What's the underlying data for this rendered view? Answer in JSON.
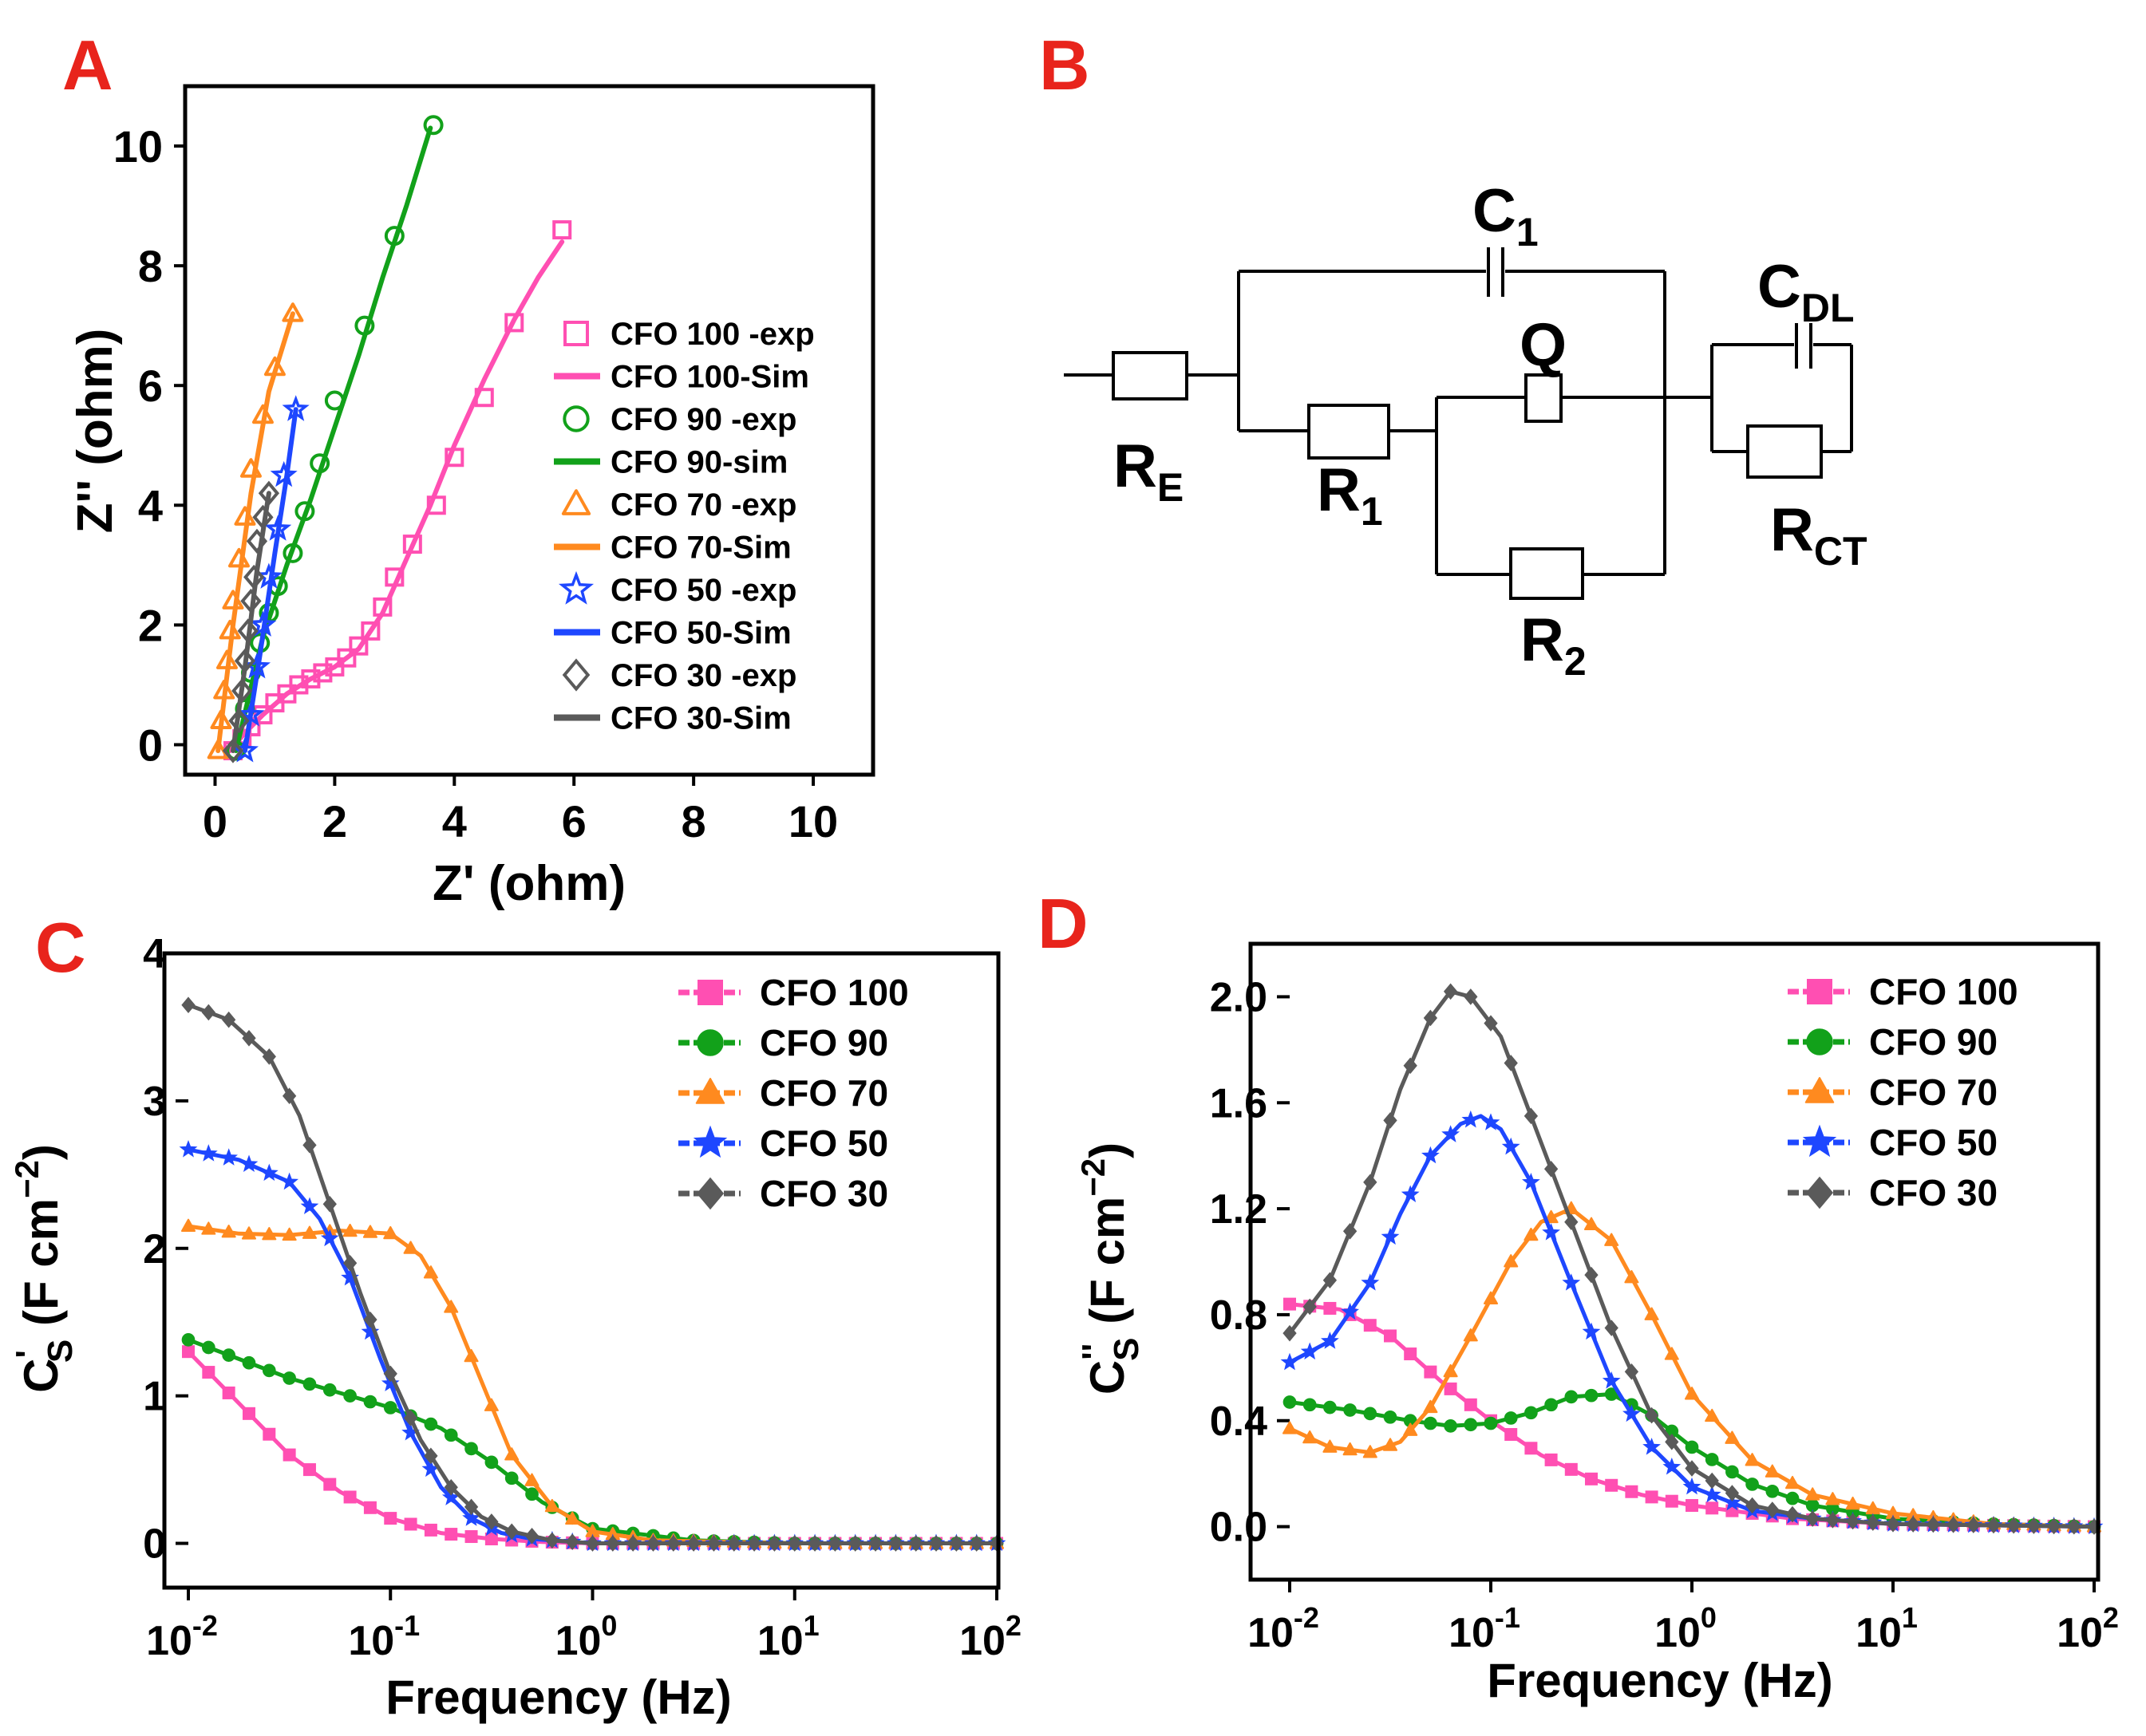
{
  "panel_labels": {
    "a": "A",
    "b": "B",
    "c": "C",
    "d": "D"
  },
  "colors": {
    "pink": "#ff4fb2",
    "green": "#12a11a",
    "orange": "#ff8a1f",
    "blue": "#1e47ff",
    "gray": "#5a5a5a",
    "label_red": "#e8241c"
  },
  "circuit": {
    "labels": {
      "re_main": "R",
      "re_sub": "E",
      "r1_main": "R",
      "r1_sub": "1",
      "r2_main": "R",
      "r2_sub": "2",
      "c1_main": "C",
      "c1_sub": "1",
      "cdl_main": "C",
      "cdl_sub": "DL",
      "rct_main": "R",
      "rct_sub": "CT",
      "q": "Q"
    }
  },
  "chart_data": [
    {
      "panel": "A",
      "type": "scatter",
      "xlabel": "Z' (ohm)",
      "ylabel": "Z'' (ohm)",
      "xlim": [
        -0.5,
        11
      ],
      "ylim": [
        -0.5,
        11
      ],
      "xticks": [
        "0",
        "2",
        "4",
        "6",
        "8",
        "10"
      ],
      "yticks": [
        "0",
        "2",
        "4",
        "6",
        "8",
        "10"
      ],
      "xtick_values": [
        0,
        2,
        4,
        6,
        8,
        10
      ],
      "ytick_values": [
        0,
        2,
        4,
        6,
        8,
        10
      ],
      "legend": [
        "CFO 100 -exp",
        "CFO 100-Sim",
        "CFO 90 -exp",
        "CFO 90-sim",
        "CFO 70 -exp",
        "CFO 70-Sim",
        "CFO 50 -exp",
        "CFO 50-Sim",
        "CFO 30 -exp",
        "CFO 30-Sim"
      ],
      "series": [
        {
          "name": "CFO 100",
          "color": "pink",
          "marker": "square",
          "exp": [
            [
              0.3,
              -0.1
            ],
            [
              0.45,
              0.1
            ],
            [
              0.6,
              0.3
            ],
            [
              0.8,
              0.5
            ],
            [
              1.0,
              0.7
            ],
            [
              1.2,
              0.85
            ],
            [
              1.4,
              1.0
            ],
            [
              1.6,
              1.1
            ],
            [
              1.8,
              1.2
            ],
            [
              2.0,
              1.3
            ],
            [
              2.2,
              1.45
            ],
            [
              2.4,
              1.65
            ],
            [
              2.6,
              1.9
            ],
            [
              2.8,
              2.3
            ],
            [
              3.0,
              2.8
            ],
            [
              3.3,
              3.35
            ],
            [
              3.7,
              4.0
            ],
            [
              4.0,
              4.8
            ],
            [
              4.5,
              5.8
            ],
            [
              5.0,
              7.05
            ],
            [
              5.8,
              8.6
            ]
          ],
          "sim": [
            [
              0.25,
              -0.1
            ],
            [
              0.5,
              0.2
            ],
            [
              0.8,
              0.5
            ],
            [
              1.2,
              0.85
            ],
            [
              1.6,
              1.1
            ],
            [
              2.0,
              1.3
            ],
            [
              2.4,
              1.6
            ],
            [
              2.8,
              2.2
            ],
            [
              3.2,
              3.1
            ],
            [
              3.6,
              4.0
            ],
            [
              4.0,
              5.0
            ],
            [
              4.5,
              6.1
            ],
            [
              5.0,
              7.1
            ],
            [
              5.4,
              7.8
            ],
            [
              5.8,
              8.4
            ]
          ]
        },
        {
          "name": "CFO 90",
          "color": "green",
          "marker": "circle",
          "exp": [
            [
              0.35,
              -0.1
            ],
            [
              0.5,
              0.6
            ],
            [
              0.6,
              1.2
            ],
            [
              0.75,
              1.7
            ],
            [
              0.9,
              2.2
            ],
            [
              1.05,
              2.65
            ],
            [
              1.3,
              3.2
            ],
            [
              1.5,
              3.9
            ],
            [
              1.75,
              4.7
            ],
            [
              2.0,
              5.75
            ],
            [
              2.5,
              7.0
            ],
            [
              3.0,
              8.5
            ],
            [
              3.65,
              10.35
            ]
          ],
          "sim": [
            [
              0.35,
              -0.1
            ],
            [
              0.8,
              1.8
            ],
            [
              1.2,
              3.0
            ],
            [
              1.6,
              4.1
            ],
            [
              2.0,
              5.3
            ],
            [
              2.4,
              6.5
            ],
            [
              2.8,
              7.8
            ],
            [
              3.2,
              9.0
            ],
            [
              3.6,
              10.3
            ]
          ]
        },
        {
          "name": "CFO 70",
          "color": "orange",
          "marker": "triangle",
          "exp": [
            [
              0.05,
              -0.1
            ],
            [
              0.1,
              0.4
            ],
            [
              0.15,
              0.9
            ],
            [
              0.2,
              1.4
            ],
            [
              0.25,
              1.9
            ],
            [
              0.3,
              2.4
            ],
            [
              0.4,
              3.1
            ],
            [
              0.5,
              3.8
            ],
            [
              0.6,
              4.6
            ],
            [
              0.8,
              5.5
            ],
            [
              1.0,
              6.3
            ],
            [
              1.3,
              7.2
            ]
          ],
          "sim": [
            [
              0.05,
              -0.1
            ],
            [
              0.3,
              2.0
            ],
            [
              0.6,
              4.2
            ],
            [
              0.9,
              5.9
            ],
            [
              1.3,
              7.2
            ]
          ]
        },
        {
          "name": "CFO 50",
          "color": "blue",
          "marker": "star",
          "exp": [
            [
              0.5,
              -0.1
            ],
            [
              0.6,
              0.5
            ],
            [
              0.7,
              1.3
            ],
            [
              0.8,
              2.0
            ],
            [
              0.9,
              2.8
            ],
            [
              1.05,
              3.6
            ],
            [
              1.15,
              4.5
            ],
            [
              1.35,
              5.6
            ]
          ],
          "sim": [
            [
              0.5,
              -0.1
            ],
            [
              0.75,
              1.5
            ],
            [
              1.0,
              3.2
            ],
            [
              1.2,
              4.5
            ],
            [
              1.35,
              5.6
            ]
          ]
        },
        {
          "name": "CFO 30",
          "color": "gray",
          "marker": "diamond",
          "exp": [
            [
              0.3,
              -0.1
            ],
            [
              0.4,
              0.4
            ],
            [
              0.45,
              0.9
            ],
            [
              0.5,
              1.4
            ],
            [
              0.55,
              1.9
            ],
            [
              0.6,
              2.4
            ],
            [
              0.65,
              2.8
            ],
            [
              0.7,
              3.4
            ],
            [
              0.8,
              3.8
            ],
            [
              0.9,
              4.2
            ]
          ],
          "sim": [
            [
              0.3,
              -0.1
            ],
            [
              0.5,
              1.3
            ],
            [
              0.7,
              2.9
            ],
            [
              0.9,
              4.2
            ]
          ]
        }
      ]
    },
    {
      "panel": "C",
      "type": "line",
      "xlabel": "Frequency (Hz)",
      "ylabel_main": "C",
      "ylabel_prime": "'",
      "ylabel_sub": "S",
      "ylabel_units": " (F cm",
      "ylabel_exp": "−2",
      "ylabel_close": ")",
      "xscale": "log",
      "xlim": [
        0.01,
        100
      ],
      "ylim": [
        -0.3,
        4
      ],
      "xtick_base": "10",
      "xtick_exps": [
        "-2",
        "-1",
        "0",
        "1",
        "2"
      ],
      "xtick_values": [
        0.01,
        0.1,
        1,
        10,
        100
      ],
      "yticks": [
        "0",
        "1",
        "2",
        "3",
        "4"
      ],
      "ytick_values": [
        0,
        1,
        2,
        3,
        4
      ],
      "legend": [
        "CFO 100",
        "CFO 90",
        "CFO 70",
        "CFO 50",
        "CFO 30"
      ],
      "series": [
        {
          "name": "CFO 100",
          "color": "pink",
          "marker": "square",
          "logx": [
            -2,
            -1.75,
            -1.5,
            -1.25,
            -1,
            -0.75,
            -0.5,
            -0.25,
            0,
            1,
            2
          ],
          "y": [
            1.3,
            0.95,
            0.6,
            0.35,
            0.17,
            0.07,
            0.03,
            0.01,
            0,
            0,
            0
          ]
        },
        {
          "name": "CFO 90",
          "color": "green",
          "marker": "circle",
          "logx": [
            -2,
            -1.75,
            -1.5,
            -1.25,
            -1,
            -0.75,
            -0.5,
            -0.25,
            0,
            0.5,
            1,
            2
          ],
          "y": [
            1.38,
            1.25,
            1.12,
            1.02,
            0.92,
            0.78,
            0.55,
            0.28,
            0.1,
            0.02,
            0,
            0
          ]
        },
        {
          "name": "CFO 70",
          "color": "orange",
          "marker": "triangle",
          "logx": [
            -2,
            -1.75,
            -1.5,
            -1.25,
            -1,
            -0.85,
            -0.7,
            -0.55,
            -0.4,
            -0.2,
            0,
            0.3,
            1,
            2
          ],
          "y": [
            2.15,
            2.1,
            2.09,
            2.12,
            2.1,
            1.95,
            1.6,
            1.1,
            0.6,
            0.25,
            0.08,
            0.02,
            0,
            0
          ]
        },
        {
          "name": "CFO 50",
          "color": "blue",
          "marker": "star",
          "logx": [
            -2,
            -1.75,
            -1.5,
            -1.35,
            -1.2,
            -1.05,
            -0.9,
            -0.75,
            -0.6,
            -0.45,
            -0.3,
            0,
            1,
            2
          ],
          "y": [
            2.67,
            2.6,
            2.45,
            2.2,
            1.8,
            1.25,
            0.75,
            0.38,
            0.17,
            0.07,
            0.03,
            0,
            0,
            0
          ]
        },
        {
          "name": "CFO 30",
          "color": "gray",
          "marker": "diamond",
          "logx": [
            -2,
            -1.8,
            -1.6,
            -1.45,
            -1.3,
            -1.15,
            -1,
            -0.85,
            -0.7,
            -0.55,
            -0.4,
            -0.2,
            0,
            1,
            2
          ],
          "y": [
            3.65,
            3.55,
            3.3,
            2.9,
            2.3,
            1.7,
            1.15,
            0.7,
            0.38,
            0.18,
            0.08,
            0.02,
            0,
            0,
            0
          ]
        }
      ]
    },
    {
      "panel": "D",
      "type": "line",
      "xlabel": "Frequency (Hz)",
      "ylabel_main": "C",
      "ylabel_prime": "''",
      "ylabel_sub": "S",
      "ylabel_units": " (F cm",
      "ylabel_exp": "−2",
      "ylabel_close": ")",
      "xscale": "log",
      "xlim": [
        0.01,
        100
      ],
      "ylim": [
        -0.2,
        2.2
      ],
      "xtick_base": "10",
      "xtick_exps": [
        "-2",
        "-1",
        "0",
        "1",
        "2"
      ],
      "xtick_values": [
        0.01,
        0.1,
        1,
        10,
        100
      ],
      "yticks": [
        "0.0",
        "0.4",
        "0.8",
        "1.2",
        "1.6",
        "2.0"
      ],
      "ytick_values": [
        0,
        0.4,
        0.8,
        1.2,
        1.6,
        2.0
      ],
      "legend": [
        "CFO 100",
        "CFO 90",
        "CFO 70",
        "CFO 50",
        "CFO 30"
      ],
      "series": [
        {
          "name": "CFO 100",
          "color": "pink",
          "marker": "square",
          "logx": [
            -2,
            -1.75,
            -1.5,
            -1.25,
            -1,
            -0.75,
            -0.5,
            -0.25,
            0,
            0.5,
            1,
            2
          ],
          "y": [
            0.84,
            0.82,
            0.72,
            0.55,
            0.4,
            0.27,
            0.18,
            0.12,
            0.08,
            0.03,
            0.01,
            0
          ]
        },
        {
          "name": "CFO 90",
          "color": "green",
          "marker": "circle",
          "logx": [
            -2,
            -1.7,
            -1.4,
            -1.2,
            -1,
            -0.8,
            -0.6,
            -0.4,
            -0.2,
            0,
            0.3,
            0.6,
            1,
            1.5,
            2
          ],
          "y": [
            0.47,
            0.44,
            0.4,
            0.38,
            0.39,
            0.43,
            0.49,
            0.5,
            0.42,
            0.3,
            0.16,
            0.08,
            0.03,
            0.01,
            0
          ]
        },
        {
          "name": "CFO 70",
          "color": "orange",
          "marker": "triangle",
          "logx": [
            -2,
            -1.8,
            -1.6,
            -1.45,
            -1.3,
            -1.1,
            -0.9,
            -0.75,
            -0.6,
            -0.4,
            -0.2,
            0,
            0.3,
            0.6,
            1,
            1.5,
            2
          ],
          "y": [
            0.37,
            0.3,
            0.28,
            0.32,
            0.45,
            0.72,
            1.0,
            1.15,
            1.2,
            1.08,
            0.8,
            0.5,
            0.25,
            0.12,
            0.05,
            0.01,
            0
          ]
        },
        {
          "name": "CFO 50",
          "color": "blue",
          "marker": "star",
          "logx": [
            -2,
            -1.8,
            -1.6,
            -1.45,
            -1.3,
            -1.15,
            -1.05,
            -0.95,
            -0.8,
            -0.6,
            -0.4,
            -0.2,
            0,
            0.3,
            0.6,
            1,
            2
          ],
          "y": [
            0.62,
            0.7,
            0.92,
            1.18,
            1.4,
            1.52,
            1.55,
            1.5,
            1.3,
            0.92,
            0.55,
            0.3,
            0.15,
            0.06,
            0.03,
            0.01,
            0
          ]
        },
        {
          "name": "CFO 30",
          "color": "gray",
          "marker": "diamond",
          "logx": [
            -2,
            -1.8,
            -1.6,
            -1.45,
            -1.3,
            -1.2,
            -1.1,
            -0.95,
            -0.8,
            -0.6,
            -0.4,
            -0.2,
            0,
            0.3,
            0.6,
            1,
            2
          ],
          "y": [
            0.73,
            0.93,
            1.3,
            1.65,
            1.92,
            2.02,
            2.0,
            1.85,
            1.55,
            1.15,
            0.75,
            0.42,
            0.22,
            0.08,
            0.03,
            0.01,
            0
          ]
        }
      ]
    }
  ]
}
